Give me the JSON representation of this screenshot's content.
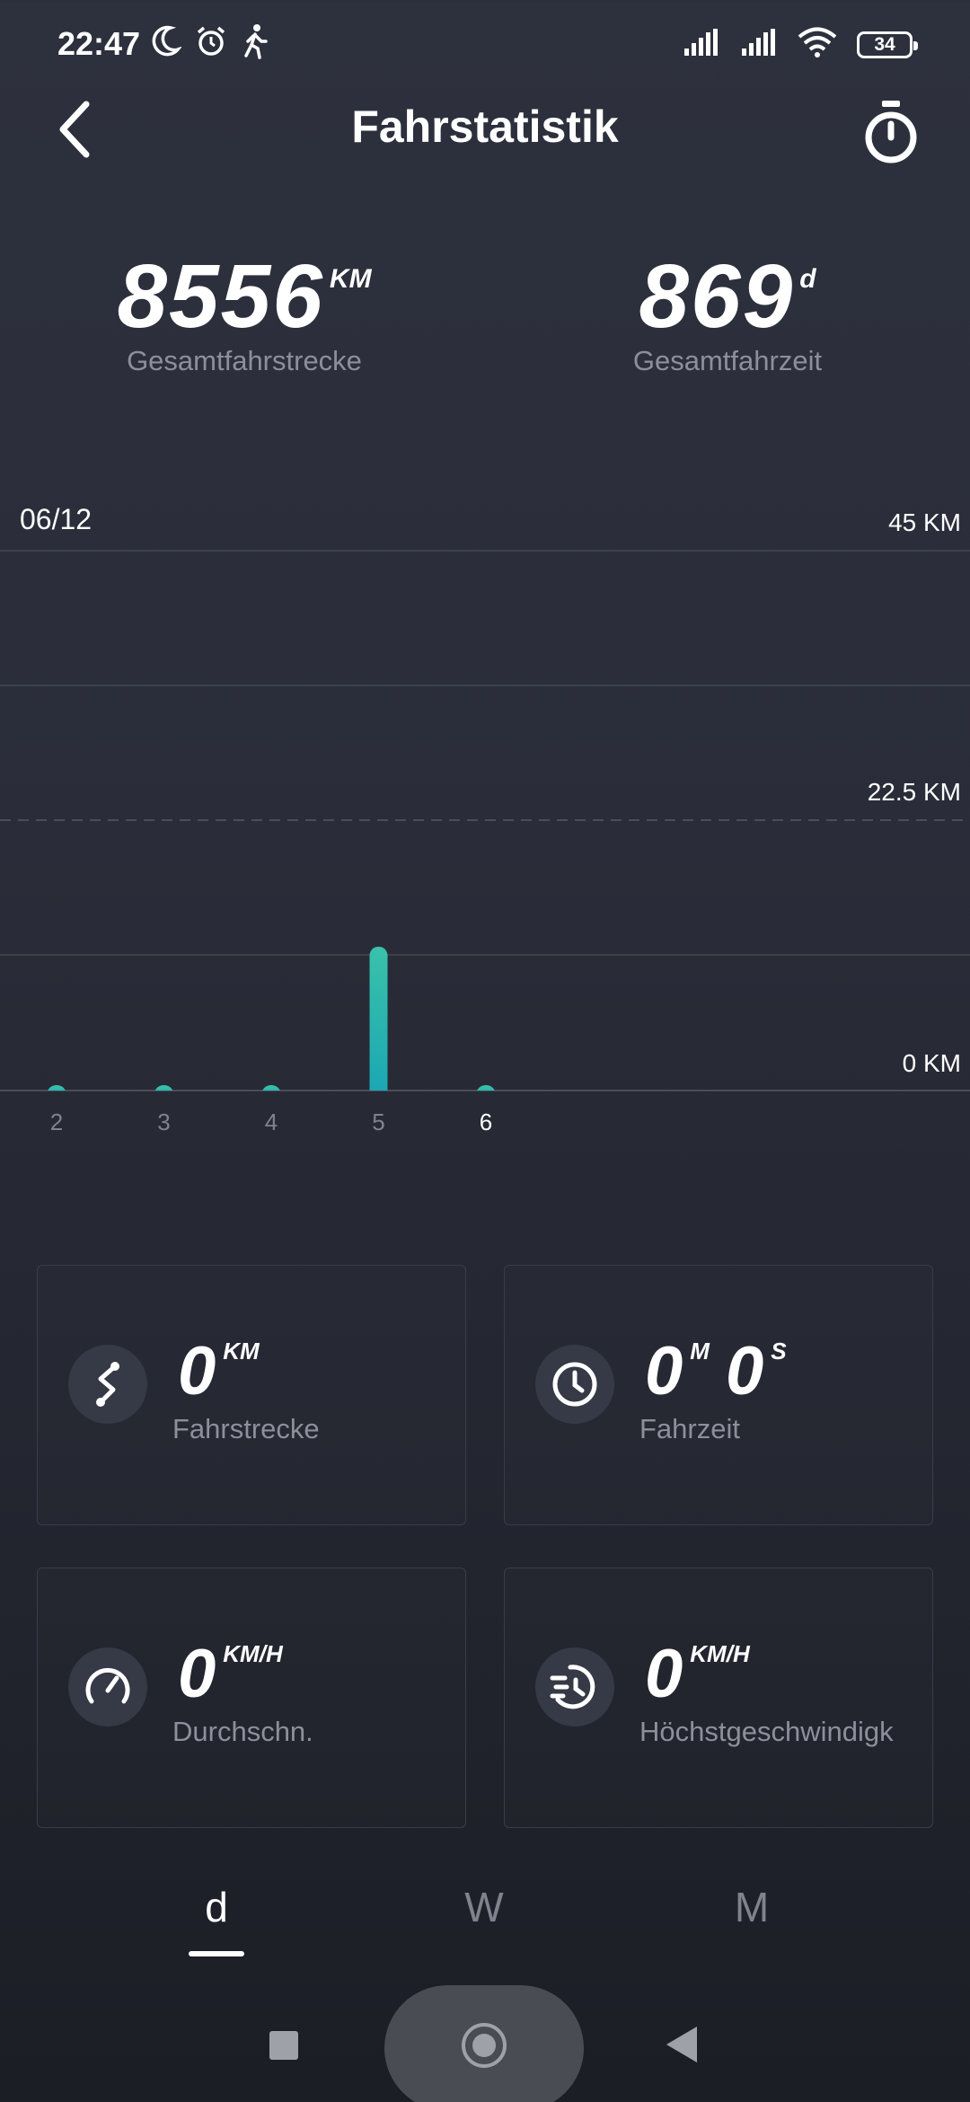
{
  "status_bar": {
    "time": "22:47",
    "battery": "34",
    "left_icons": [
      "moon-icon",
      "alarm-icon",
      "walking-icon"
    ],
    "right_icons": [
      "signal-icon",
      "signal-icon",
      "wifi-icon",
      "battery-icon"
    ]
  },
  "header": {
    "title": "Fahrstatistik",
    "back_icon": "chevron-left-icon",
    "right_icon": "stopwatch-icon"
  },
  "totals": {
    "distance": {
      "value": "8556",
      "unit": "KM",
      "label": "Gesamtfahrstrecke"
    },
    "time": {
      "value": "869",
      "unit": "d",
      "label": "Gesamtfahrzeit"
    }
  },
  "chart_data": {
    "type": "bar",
    "date_label": "06/12",
    "categories": [
      "2",
      "3",
      "4",
      "5",
      "6"
    ],
    "values": [
      0,
      0,
      0,
      12,
      0
    ],
    "selected_category": "6",
    "y_tick_labels": [
      "45 KM",
      "22.5 KM",
      "0 KM"
    ],
    "ylim": [
      0,
      45
    ],
    "grid": true,
    "bar_colors": [
      "#39c2a9",
      "#1aa6b4"
    ]
  },
  "stats": {
    "distance": {
      "value": "0",
      "unit": "KM",
      "label": "Fahrstrecke",
      "icon": "route-icon"
    },
    "time": {
      "minutes": "0",
      "minutes_unit": "M",
      "seconds": "0",
      "seconds_unit": "S",
      "label": "Fahrzeit",
      "icon": "clock-icon"
    },
    "avg_speed": {
      "value": "0",
      "unit": "KM/H",
      "label": "Durchschn.",
      "icon": "speedometer-icon"
    },
    "max_speed": {
      "value": "0",
      "unit": "KM/H",
      "label": "Höchstgeschwindigk",
      "icon": "fast-timer-icon"
    }
  },
  "tabs": {
    "items": [
      {
        "label": "d",
        "active": true
      },
      {
        "label": "W",
        "active": false
      },
      {
        "label": "M",
        "active": false
      }
    ]
  },
  "nav_bar": {
    "icons": [
      "recents-icon",
      "home-icon",
      "back-icon"
    ]
  }
}
